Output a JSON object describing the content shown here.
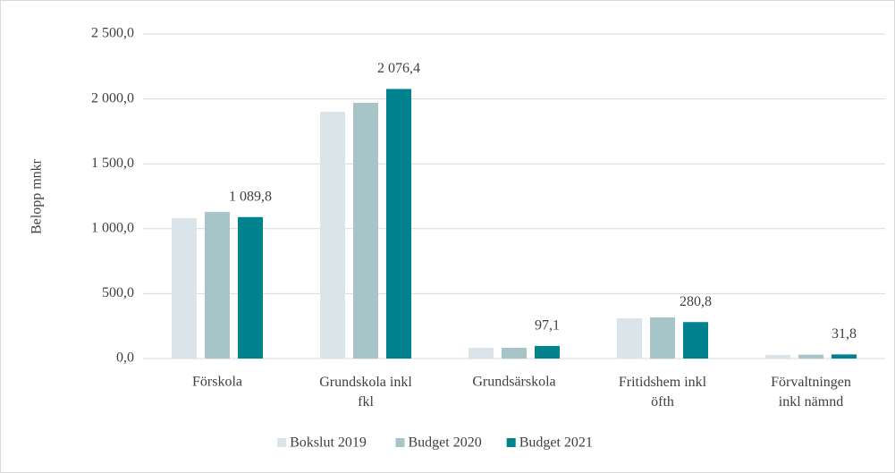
{
  "chart_data": {
    "type": "bar",
    "y_label": "Belopp mnkr",
    "categories": [
      "Förskola",
      "Grundskola inkl fkl",
      "Grundsärskola",
      "Fritidshem inkl öfth",
      "Förvaltningen inkl nämnd"
    ],
    "series": [
      {
        "name": "Bokslut 2019",
        "color": "#dbe5e9",
        "values": [
          1081,
          1901,
          83,
          310,
          28
        ]
      },
      {
        "name": "Budget 2020",
        "color": "#a7c4c9",
        "values": [
          1129,
          1970,
          83,
          317,
          30
        ]
      },
      {
        "name": "Budget 2021",
        "color": "#00838f",
        "values": [
          1089.8,
          2076.4,
          97.1,
          280.8,
          31.8
        ],
        "value_labels": [
          "1 089,8",
          "2 076,4",
          "97,1",
          "280,8",
          "31,8"
        ]
      }
    ],
    "ylim": [
      0,
      2500
    ],
    "yticks": [
      {
        "value": 0,
        "label": "0,0"
      },
      {
        "value": 500,
        "label": "500,0"
      },
      {
        "value": 1000,
        "label": "1 000,0"
      },
      {
        "value": 1500,
        "label": "1 500,0"
      },
      {
        "value": 2000,
        "label": "2 000,0"
      },
      {
        "value": 2500,
        "label": "2 500,0"
      }
    ],
    "grid": true
  }
}
